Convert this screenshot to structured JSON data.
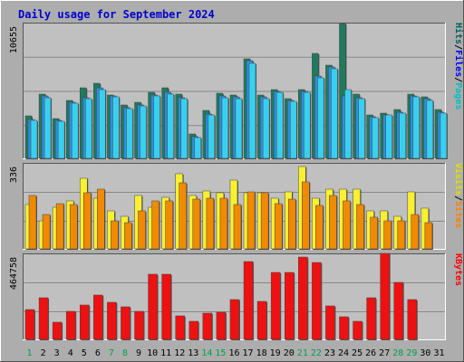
{
  "chart_data": {
    "type": "bar",
    "title": "Daily usage for September 2024",
    "categories": [
      "1",
      "2",
      "3",
      "4",
      "5",
      "6",
      "7",
      "8",
      "9",
      "10",
      "11",
      "12",
      "13",
      "14",
      "15",
      "16",
      "17",
      "18",
      "19",
      "20",
      "21",
      "22",
      "23",
      "24",
      "25",
      "26",
      "27",
      "28",
      "29",
      "30",
      "31"
    ],
    "weekend_days": [
      "1",
      "7",
      "8",
      "14",
      "15",
      "21",
      "22",
      "28",
      "29"
    ],
    "panels": [
      {
        "name": "hits-files-pages",
        "ymax_label": "10655",
        "ymax": 10655,
        "ylabels": [
          {
            "text": "Pages",
            "color": "#00C0C0"
          },
          {
            "text": "Files",
            "color": "#0000FF"
          },
          {
            "text": "Hits",
            "color": "#006060"
          }
        ],
        "series": [
          {
            "name": "Hits",
            "color": "#1F7A5F",
            "values": [
              3350,
              5100,
              3150,
              4600,
              5600,
              5900,
              5000,
              4250,
              4400,
              5250,
              5600,
              5100,
              1950,
              3800,
              5150,
              5000,
              7900,
              5000,
              5450,
              4750,
              5450,
              8300,
              7400,
              10655,
              5100,
              3450,
              3600,
              3850,
              5100,
              4850,
              3850
            ]
          },
          {
            "name": "Files",
            "color": "#2F8FE0",
            "values": [
              3100,
              4900,
              3000,
              4400,
              4800,
              5600,
              4950,
              4000,
              4200,
              5000,
              5200,
              4800,
              1700,
              3500,
              4900,
              4850,
              7700,
              4850,
              5300,
              4600,
              5300,
              6500,
              7200,
              4950,
              4800,
              3300,
              3450,
              3650,
              4950,
              4700,
              3650
            ]
          },
          {
            "name": "Pages",
            "color": "#38D0F0",
            "values": [
              3000,
              4800,
              2950,
              4350,
              4700,
              5450,
              4850,
              3950,
              4150,
              4900,
              5100,
              4700,
              1650,
              3450,
              4800,
              4750,
              7500,
              4750,
              5200,
              4500,
              5200,
              6400,
              7100,
              5400,
              4700,
              3250,
              3400,
              3600,
              4850,
              4600,
              3550
            ]
          }
        ]
      },
      {
        "name": "visits-sites",
        "ymax_label": "336",
        "ymax": 336,
        "ylabels": [
          {
            "text": "Sites",
            "color": "#FF8000"
          },
          {
            "text": "Visits",
            "color": "#E0E000"
          }
        ],
        "series": [
          {
            "name": "Visits",
            "color": "#F8F030",
            "values": [
              175,
              110,
              165,
              190,
              280,
              200,
              150,
              130,
              210,
              165,
              205,
              295,
              210,
              230,
              220,
              270,
              220,
              220,
              200,
              225,
              325,
              200,
              235,
              235,
              235,
              150,
              150,
              130,
              225,
              160,
              0
            ]
          },
          {
            "name": "Sites",
            "color": "#F08A00",
            "values": [
              210,
              135,
              180,
              175,
              220,
              235,
              110,
              105,
              150,
              190,
              190,
              260,
              195,
              200,
              200,
              175,
              225,
              220,
              180,
              195,
              265,
              170,
              210,
              190,
              175,
              125,
              110,
              110,
              135,
              105,
              0
            ]
          }
        ]
      },
      {
        "name": "kbytes",
        "ymax_label": "464758",
        "ymax": 464758,
        "ylabels": [
          {
            "text": "KBytes",
            "color": "#FF0000"
          }
        ],
        "series": [
          {
            "name": "KBytes",
            "color": "#EE1111",
            "values": [
              165000,
              225000,
              95000,
              155000,
              190000,
              240000,
              205000,
              180000,
              155000,
              355000,
              355000,
              130000,
              100000,
              145000,
              150000,
              220000,
              425000,
              210000,
              365000,
              365000,
              450000,
              420000,
              185000,
              125000,
              100000,
              225000,
              470000,
              310000,
              220000,
              0,
              0
            ]
          }
        ]
      }
    ]
  }
}
